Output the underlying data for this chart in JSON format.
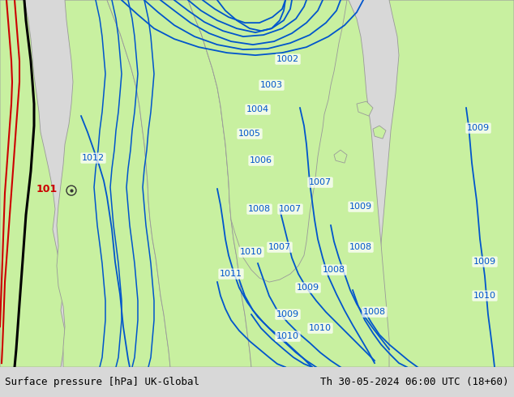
{
  "title_left": "Surface pressure [hPa] UK-Global",
  "title_right": "Th 30-05-2024 06:00 UTC (18+60)",
  "bg_color": "#d8d8d8",
  "land_color": "#c8f0a0",
  "land_edge": "#999999",
  "contour_color": "#0055cc",
  "font_size_footer": 9,
  "figsize": [
    6.34,
    4.9
  ],
  "dpi": 100,
  "footer_bg": "#c8c8c8"
}
